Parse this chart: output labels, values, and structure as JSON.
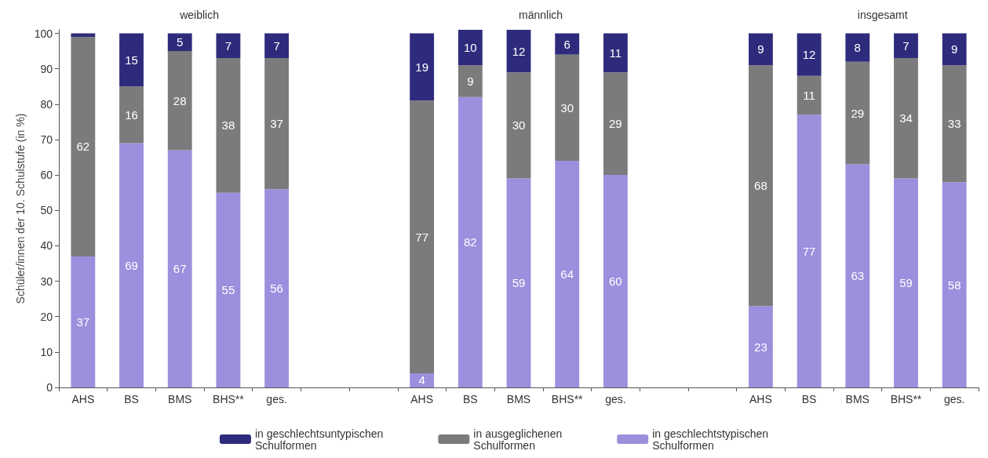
{
  "chart_data": {
    "type": "bar",
    "stacked": true,
    "ylabel": "Schüler/innen der 10. Schulstufe (in %)",
    "categories": [
      "AHS",
      "BS",
      "BMS",
      "BHS**",
      "ges.",
      null,
      null,
      "AHS",
      "BS",
      "BMS",
      "BHS**",
      "ges.",
      null,
      null,
      "AHS",
      "BS",
      "BMS",
      "BHS**",
      "ges."
    ],
    "series": [
      {
        "name": "in geschlechtstypischen\nSchulformen",
        "color": "#9c8fdd",
        "values": [
          37,
          69,
          67,
          55,
          56,
          null,
          null,
          4,
          82,
          59,
          64,
          60,
          null,
          null,
          23,
          77,
          63,
          59,
          58
        ]
      },
      {
        "name": "in ausgeglichenen\nSchulformen",
        "color": "#7b7b7d",
        "values": [
          62,
          16,
          28,
          38,
          37,
          null,
          null,
          77,
          9,
          30,
          30,
          29,
          null,
          null,
          68,
          11,
          29,
          34,
          33
        ]
      },
      {
        "name": "in geschlechtsuntypischen\nSchulformen",
        "color": "#2f2b7c",
        "values": [
          1,
          15,
          5,
          7,
          7,
          null,
          null,
          19,
          10,
          12,
          6,
          11,
          null,
          null,
          9,
          12,
          8,
          7,
          9
        ],
        "value_labels": [
          null,
          "15",
          "5",
          "7",
          "7",
          null,
          null,
          "19",
          "10",
          "12",
          "6",
          "11",
          null,
          null,
          "9",
          "12",
          "8",
          "7",
          "9"
        ]
      }
    ],
    "data_labels": true,
    "annotations": [
      "weiblich",
      "männlich",
      "insgesamt"
    ],
    "ylim": [
      0,
      101
    ],
    "yticks": [
      0,
      10,
      20,
      30,
      40,
      50,
      60,
      70,
      80,
      90,
      100
    ],
    "grid": false,
    "legend": "bottom"
  }
}
